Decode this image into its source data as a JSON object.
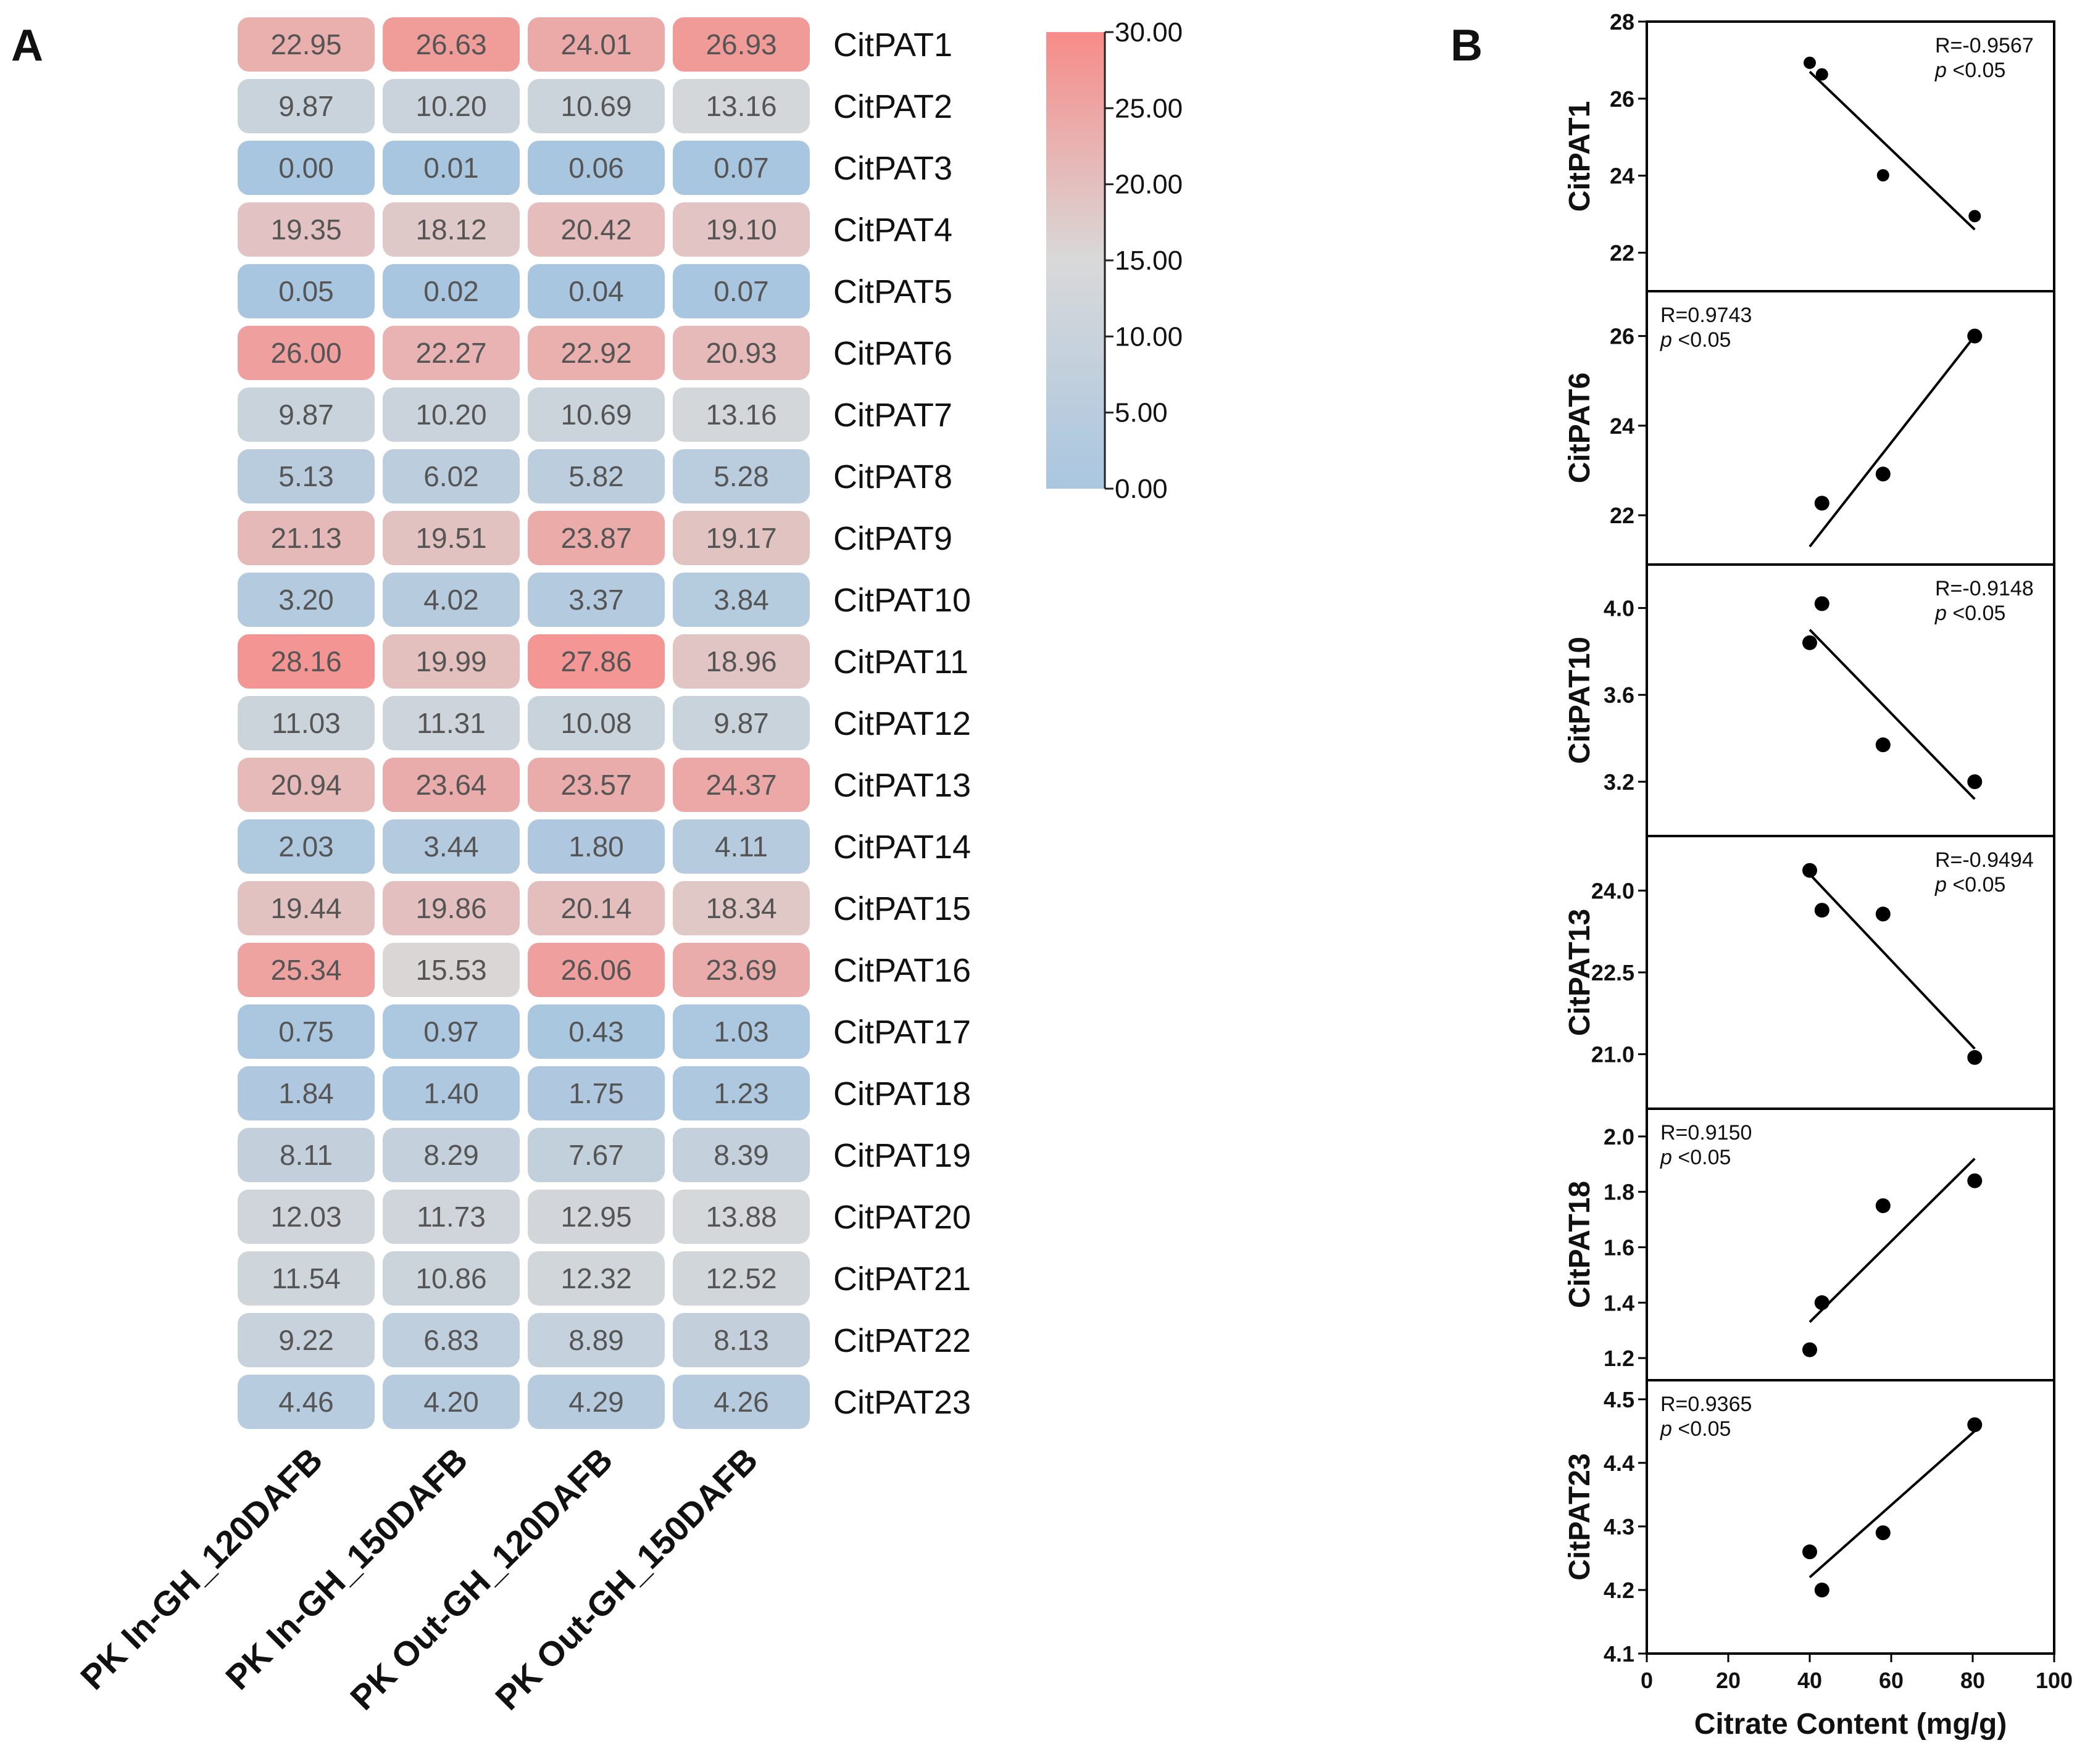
{
  "panels": {
    "a_label": "A",
    "b_label": "B"
  },
  "chart_data": [
    {
      "type": "heatmap",
      "title": "",
      "columns": [
        "PK In-GH_120DAFB",
        "PK In-GH_150DAFB",
        "PK Out-GH_120DAFB",
        "PK Out-GH_150DAFB"
      ],
      "rows": [
        "CitPAT1",
        "CitPAT2",
        "CitPAT3",
        "CitPAT4",
        "CitPAT5",
        "CitPAT6",
        "CitPAT7",
        "CitPAT8",
        "CitPAT9",
        "CitPAT10",
        "CitPAT11",
        "CitPAT12",
        "CitPAT13",
        "CitPAT14",
        "CitPAT15",
        "CitPAT16",
        "CitPAT17",
        "CitPAT18",
        "CitPAT19",
        "CitPAT20",
        "CitPAT21",
        "CitPAT22",
        "CitPAT23"
      ],
      "values": [
        [
          22.95,
          26.63,
          24.01,
          26.93
        ],
        [
          9.87,
          10.2,
          10.69,
          13.16
        ],
        [
          0.0,
          0.01,
          0.06,
          0.07
        ],
        [
          19.35,
          18.12,
          20.42,
          19.1
        ],
        [
          0.05,
          0.02,
          0.04,
          0.07
        ],
        [
          26.0,
          22.27,
          22.92,
          20.93
        ],
        [
          9.87,
          10.2,
          10.69,
          13.16
        ],
        [
          5.13,
          6.02,
          5.82,
          5.28
        ],
        [
          21.13,
          19.51,
          23.87,
          19.17
        ],
        [
          3.2,
          4.02,
          3.37,
          3.84
        ],
        [
          28.16,
          19.99,
          27.86,
          18.96
        ],
        [
          11.03,
          11.31,
          10.08,
          9.87
        ],
        [
          20.94,
          23.64,
          23.57,
          24.37
        ],
        [
          2.03,
          3.44,
          1.8,
          4.11
        ],
        [
          19.44,
          19.86,
          20.14,
          18.34
        ],
        [
          25.34,
          15.53,
          26.06,
          23.69
        ],
        [
          0.75,
          0.97,
          0.43,
          1.03
        ],
        [
          1.84,
          1.4,
          1.75,
          1.23
        ],
        [
          8.11,
          8.29,
          7.67,
          8.39
        ],
        [
          12.03,
          11.73,
          12.95,
          13.88
        ],
        [
          11.54,
          10.86,
          12.32,
          12.52
        ],
        [
          9.22,
          6.83,
          8.89,
          8.13
        ],
        [
          4.46,
          4.2,
          4.29,
          4.26
        ]
      ],
      "value_labels": [
        [
          "22.95",
          "26.63",
          "24.01",
          "26.93"
        ],
        [
          "9.87",
          "10.20",
          "10.69",
          "13.16"
        ],
        [
          "0.00",
          "0.01",
          "0.06",
          "0.07"
        ],
        [
          "19.35",
          "18.12",
          "20.42",
          "19.10"
        ],
        [
          "0.05",
          "0.02",
          "0.04",
          "0.07"
        ],
        [
          "26.00",
          "22.27",
          "22.92",
          "20.93"
        ],
        [
          "9.87",
          "10.20",
          "10.69",
          "13.16"
        ],
        [
          "5.13",
          "6.02",
          "5.82",
          "5.28"
        ],
        [
          "21.13",
          "19.51",
          "23.87",
          "19.17"
        ],
        [
          "3.20",
          "4.02",
          "3.37",
          "3.84"
        ],
        [
          "28.16",
          "19.99",
          "27.86",
          "18.96"
        ],
        [
          "11.03",
          "11.31",
          "10.08",
          "9.87"
        ],
        [
          "20.94",
          "23.64",
          "23.57",
          "24.37"
        ],
        [
          "2.03",
          "3.44",
          "1.80",
          "4.11"
        ],
        [
          "19.44",
          "19.86",
          "20.14",
          "18.34"
        ],
        [
          "25.34",
          "15.53",
          "26.06",
          "23.69"
        ],
        [
          "0.75",
          "0.97",
          "0.43",
          "1.03"
        ],
        [
          "1.84",
          "1.40",
          "1.75",
          "1.23"
        ],
        [
          "8.11",
          "8.29",
          "7.67",
          "8.39"
        ],
        [
          "12.03",
          "11.73",
          "12.95",
          "13.88"
        ],
        [
          "11.54",
          "10.86",
          "12.32",
          "12.52"
        ],
        [
          "9.22",
          "6.83",
          "8.89",
          "8.13"
        ],
        [
          "4.46",
          "4.20",
          "4.29",
          "4.26"
        ]
      ],
      "colorbar": {
        "range": [
          0,
          30
        ],
        "ticks": [
          "30.00",
          "25.00",
          "20.00",
          "15.00",
          "10.00",
          "5.00",
          "0.00"
        ],
        "colors": {
          "low": "#a9c6e0",
          "mid": "#d9d9d9",
          "high": "#f78b88"
        }
      }
    },
    {
      "type": "scatter",
      "xlabel": "Citrate Content (mg/g)",
      "xlim": [
        0,
        100
      ],
      "xticks": [
        "0",
        "20",
        "40",
        "60",
        "80",
        "100"
      ],
      "series_color": "#000000",
      "subplots": [
        {
          "ylabel": "CitPAT1",
          "ylim": [
            21,
            28
          ],
          "yticks": [
            22,
            24,
            26,
            28
          ],
          "yticklabels": [
            "22",
            "24",
            "26",
            "28"
          ],
          "points": [
            [
              40,
              26.93
            ],
            [
              43,
              26.63
            ],
            [
              58,
              24.01
            ],
            [
              80.5,
              22.95
            ]
          ],
          "fit": [
            [
              40,
              26.7
            ],
            [
              80.5,
              22.6
            ]
          ],
          "r_text": "R=-0.9567",
          "p_sym": "p",
          "p_text": " <0.05",
          "annot_pos": "top-right"
        },
        {
          "ylabel": "CitPAT6",
          "ylim": [
            20.9,
            27
          ],
          "yticks": [
            22,
            24,
            26
          ],
          "yticklabels": [
            "22",
            "24",
            "26"
          ],
          "points": [
            [
              43,
              22.27
            ],
            [
              58,
              22.92
            ],
            [
              80.5,
              26.0
            ]
          ],
          "fit": [
            [
              40,
              21.3
            ],
            [
              80.5,
              26.0
            ]
          ],
          "r_text": "R=0.9743",
          "p_sym": "p",
          "p_text": " <0.05",
          "annot_pos": "top-left"
        },
        {
          "ylabel": "CitPAT10",
          "ylim": [
            2.95,
            4.2
          ],
          "yticks": [
            3.2,
            3.6,
            4.0
          ],
          "yticklabels": [
            "3.2",
            "3.6",
            "4.0"
          ],
          "points": [
            [
              40,
              3.84
            ],
            [
              43,
              4.02
            ],
            [
              58,
              3.37
            ],
            [
              80.5,
              3.2
            ]
          ],
          "fit": [
            [
              40,
              3.9
            ],
            [
              80.5,
              3.12
            ]
          ],
          "r_text": "R=-0.9148",
          "p_sym": "p",
          "p_text": " <0.05",
          "annot_pos": "top-right"
        },
        {
          "ylabel": "CitPAT13",
          "ylim": [
            20.0,
            25.0
          ],
          "yticks": [
            21.0,
            22.5,
            24.0
          ],
          "yticklabels": [
            "21.0",
            "22.5",
            "24.0"
          ],
          "points": [
            [
              40,
              24.37
            ],
            [
              43,
              23.64
            ],
            [
              58,
              23.57
            ],
            [
              80.5,
              20.94
            ]
          ],
          "fit": [
            [
              40,
              24.3
            ],
            [
              80.5,
              21.1
            ]
          ],
          "r_text": "R=-0.9494",
          "p_sym": "p",
          "p_text": " <0.05",
          "annot_pos": "top-right"
        },
        {
          "ylabel": "CitPAT18",
          "ylim": [
            1.12,
            2.1
          ],
          "yticks": [
            1.2,
            1.4,
            1.6,
            1.8,
            2.0
          ],
          "yticklabels": [
            "1.2",
            "1.4",
            "1.6",
            "1.8",
            "2.0"
          ],
          "points": [
            [
              40,
              1.23
            ],
            [
              43,
              1.4
            ],
            [
              58,
              1.75
            ],
            [
              80.5,
              1.84
            ]
          ],
          "fit": [
            [
              40,
              1.33
            ],
            [
              80.5,
              1.92
            ]
          ],
          "r_text": "R=0.9150",
          "p_sym": "p",
          "p_text": " <0.05",
          "annot_pos": "top-left"
        },
        {
          "ylabel": "CitPAT23",
          "ylim": [
            4.1,
            4.53
          ],
          "yticks": [
            4.1,
            4.2,
            4.3,
            4.4,
            4.5
          ],
          "yticklabels": [
            "4.1",
            "4.2",
            "4.3",
            "4.4",
            "4.5"
          ],
          "points": [
            [
              40,
              4.26
            ],
            [
              43,
              4.2
            ],
            [
              58,
              4.29
            ],
            [
              80.5,
              4.46
            ]
          ],
          "fit": [
            [
              40,
              4.22
            ],
            [
              80.5,
              4.45
            ]
          ],
          "r_text": "R=0.9365",
          "p_sym": "p",
          "p_text": " <0.05",
          "annot_pos": "top-left"
        }
      ]
    }
  ]
}
